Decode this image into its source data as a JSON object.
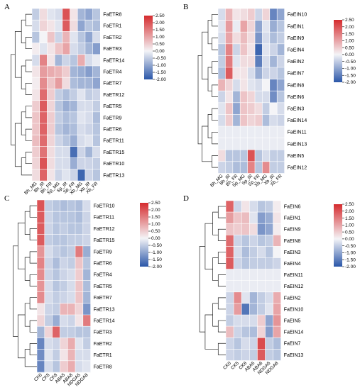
{
  "colorscale": {
    "low": "#2a56a8",
    "mid": "#f4f4f7",
    "high": "#d52b2e",
    "min": -2.0,
    "max": 2.5
  },
  "chart_data": [
    {
      "type": "heatmap",
      "panel": "A",
      "columns": [
        "Bh_MG",
        "Bh_IR",
        "Bh_FR",
        "Sp_MG",
        "Sp_IR",
        "Sp_FR",
        "Xb_MG",
        "Xb_IR",
        "Xb_FR"
      ],
      "rows": [
        "FaETR8",
        "FaETR1",
        "FaETR2",
        "FaETR3",
        "FaETR14",
        "FaETR4",
        "FaETR7",
        "FaETR12",
        "FaETR5",
        "FaETR9",
        "FaETR6",
        "FaETR11",
        "FaETR15",
        "FaETR10",
        "FaETR13"
      ],
      "values": [
        [
          -0.5,
          0.3,
          -0.2,
          -0.3,
          2.0,
          0.2,
          -0.8,
          -1.0,
          -0.6
        ],
        [
          -0.3,
          0.4,
          0.2,
          -0.2,
          1.9,
          0.3,
          -1.0,
          -0.6,
          -0.7
        ],
        [
          -0.6,
          0.0,
          0.6,
          -0.4,
          0.8,
          -0.2,
          -0.6,
          -1.0,
          -0.3
        ],
        [
          0.1,
          -0.2,
          0.2,
          0.6,
          1.0,
          -0.3,
          -0.5,
          -0.8,
          -1.1
        ],
        [
          -0.3,
          1.4,
          0.2,
          -0.8,
          -0.4,
          -0.6,
          0.9,
          -0.3,
          -0.1
        ],
        [
          0.2,
          1.1,
          0.9,
          0.8,
          0.5,
          -0.8,
          -0.9,
          -1.1,
          -0.8
        ],
        [
          0.1,
          1.3,
          0.6,
          1.1,
          0.3,
          -0.7,
          -0.8,
          -0.8,
          -1.0
        ],
        [
          0.2,
          1.7,
          0.5,
          -0.5,
          -0.7,
          -0.5,
          -0.2,
          -0.5,
          -0.4
        ],
        [
          0.5,
          1.9,
          0.4,
          -0.6,
          -0.9,
          -0.8,
          -0.3,
          -0.3,
          -0.5
        ],
        [
          0.6,
          1.8,
          0.5,
          -0.5,
          -0.7,
          -0.6,
          -0.2,
          -0.3,
          -0.7
        ],
        [
          0.6,
          1.8,
          0.5,
          -0.6,
          -0.8,
          -0.7,
          -0.3,
          -0.4,
          -0.6
        ],
        [
          0.7,
          1.7,
          0.4,
          -0.4,
          -0.6,
          -0.9,
          -0.3,
          -0.2,
          -0.6
        ],
        [
          0.5,
          1.6,
          0.3,
          -0.3,
          -0.3,
          -1.7,
          -0.4,
          -0.8,
          -0.3
        ],
        [
          0.4,
          2.0,
          0.3,
          -0.3,
          -0.3,
          -0.9,
          -0.4,
          -0.4,
          -0.5
        ],
        [
          0.3,
          1.8,
          0.2,
          -0.4,
          -0.2,
          -0.4,
          -1.8,
          -0.4,
          -0.6
        ]
      ]
    },
    {
      "type": "heatmap",
      "panel": "B",
      "columns": [
        "Bh_MG",
        "Bh_IR",
        "Bh_FR",
        "Sp_MG",
        "Sp_IR",
        "Sp_FR",
        "Xb_MG",
        "Xb_IR",
        "Xb_FR"
      ],
      "rows": [
        "FaEIN10",
        "FaEIN1",
        "FaEIN9",
        "FaEIN4",
        "FaEIN2",
        "FaEIN7",
        "FaEIN8",
        "FaEIN6",
        "FaEIN3",
        "FaEIN14",
        "FaEIN11",
        "FaEIN13",
        "FaEIN5",
        "FaEIN12"
      ],
      "values": [
        [
          -0.3,
          0.8,
          0.2,
          0.3,
          0.5,
          -0.4,
          0.4,
          -1.4,
          -1.0
        ],
        [
          -0.2,
          1.1,
          -0.1,
          1.0,
          0.4,
          -1.0,
          -0.2,
          -0.9,
          -0.6
        ],
        [
          -0.3,
          1.0,
          0.3,
          0.7,
          0.3,
          -1.2,
          -0.3,
          -0.7,
          -0.5
        ],
        [
          -0.6,
          1.4,
          -0.4,
          0.6,
          0.2,
          -1.8,
          -0.2,
          -0.4,
          -0.8
        ],
        [
          -0.5,
          1.5,
          -0.2,
          0.3,
          0.3,
          -1.5,
          -0.3,
          -0.8,
          -0.4
        ],
        [
          -0.7,
          1.9,
          0.2,
          0.2,
          -0.3,
          -0.9,
          -0.4,
          -0.4,
          -0.6
        ],
        [
          0.8,
          0.4,
          -0.3,
          0.2,
          -0.2,
          -0.3,
          0.0,
          -1.4,
          -1.0
        ],
        [
          -0.4,
          0.2,
          -0.8,
          0.6,
          0.4,
          -0.3,
          -0.3,
          -1.3,
          -0.6
        ],
        [
          -0.2,
          0.6,
          -1.0,
          0.6,
          0.5,
          0.3,
          -0.5,
          0.0,
          -0.3
        ],
        [
          -0.3,
          0.5,
          -0.8,
          0.6,
          0.4,
          0.5,
          -0.7,
          -0.3,
          -0.4
        ],
        [
          -0.1,
          -0.1,
          -0.1,
          -0.1,
          -0.1,
          -0.1,
          -0.1,
          -0.1,
          -0.1
        ],
        [
          -0.1,
          -0.1,
          -0.1,
          -0.1,
          -0.1,
          -0.1,
          -0.1,
          -0.1,
          -0.1
        ],
        [
          0.3,
          -0.6,
          -0.6,
          -0.6,
          2.0,
          -0.6,
          -0.3,
          -0.5,
          -0.5
        ],
        [
          -0.4,
          -0.5,
          -0.7,
          -0.7,
          1.4,
          -0.6,
          1.3,
          -0.5,
          -0.5
        ]
      ]
    },
    {
      "type": "heatmap",
      "panel": "C",
      "columns": [
        "CK0",
        "CK5",
        "CK8",
        "ABA5",
        "ABA8",
        "NDGA5",
        "NDGA8"
      ],
      "rows": [
        "FaETR10",
        "FaETR11",
        "FaETR12",
        "FaETR15",
        "FaETR9",
        "FaETR6",
        "FaETR4",
        "FaETR5",
        "FaETR7",
        "FaETR13",
        "FaETR14",
        "FaETR3",
        "FaETR2",
        "FaETR1",
        "FaETR8"
      ],
      "values": [
        [
          2.0,
          -0.5,
          -0.6,
          -0.7,
          -0.6,
          -0.7,
          -0.3
        ],
        [
          1.9,
          -0.4,
          -0.6,
          -0.6,
          -0.6,
          -0.7,
          -0.4
        ],
        [
          1.9,
          -0.4,
          -0.6,
          -0.5,
          -0.6,
          -0.6,
          -0.4
        ],
        [
          1.9,
          -0.5,
          -0.6,
          -0.6,
          -0.5,
          -0.5,
          -0.4
        ],
        [
          1.2,
          -0.3,
          -0.5,
          -0.6,
          -0.5,
          1.5,
          -0.9
        ],
        [
          1.4,
          -0.4,
          -0.7,
          -0.4,
          -0.5,
          0.6,
          -0.6
        ],
        [
          1.3,
          -0.4,
          -0.6,
          -0.4,
          -0.3,
          0.5,
          -0.8
        ],
        [
          1.2,
          -0.3,
          -0.6,
          -0.5,
          -0.3,
          0.6,
          -0.7
        ],
        [
          1.3,
          -0.3,
          -0.5,
          -0.4,
          -0.3,
          0.6,
          -0.8
        ],
        [
          0.2,
          -0.4,
          -0.5,
          0.8,
          0.8,
          0.4,
          -1.2
        ],
        [
          0.4,
          -0.5,
          -0.9,
          -0.3,
          -0.4,
          0.2,
          1.5
        ],
        [
          -0.8,
          0.4,
          1.8,
          -0.5,
          -0.5,
          -0.6,
          -0.6
        ],
        [
          -1.4,
          -0.3,
          -0.4,
          0.4,
          0.9,
          -0.2,
          -0.5
        ],
        [
          -1.3,
          -0.2,
          -0.5,
          0.2,
          0.8,
          -0.3,
          -0.3
        ],
        [
          -1.4,
          -0.3,
          -0.6,
          0.5,
          0.9,
          -0.3,
          -0.2
        ]
      ]
    },
    {
      "type": "heatmap",
      "panel": "D",
      "columns": [
        "CK0",
        "CK5",
        "CK8",
        "ABA5",
        "ABA8",
        "NDGA5",
        "NDGA8"
      ],
      "rows": [
        "FaEIN6",
        "FaEIN1",
        "FaEIN9",
        "FaEIN8",
        "FaEIN3",
        "FaEIN4",
        "FaEIN11",
        "FaEIN12",
        "FaEIN2",
        "FaEIN10",
        "FaEIN5",
        "FaEIN14",
        "FaEIN7",
        "FaEIN13"
      ],
      "values": [
        [
          1.8,
          -0.4,
          0.2,
          -0.3,
          -0.6,
          -0.5,
          0.1
        ],
        [
          1.1,
          0.6,
          0.7,
          -0.2,
          -1.1,
          -0.9,
          0.2
        ],
        [
          0.6,
          0.5,
          0.6,
          0.3,
          -1.2,
          -1.0,
          0.1
        ],
        [
          1.7,
          -0.4,
          -0.6,
          -0.4,
          -0.6,
          -0.5,
          0.8
        ],
        [
          1.8,
          -0.3,
          -0.7,
          -0.5,
          -0.3,
          -0.6,
          0.0
        ],
        [
          1.9,
          -0.4,
          -0.6,
          -0.5,
          -0.5,
          -0.5,
          -0.4
        ],
        [
          -0.1,
          -0.1,
          -0.1,
          -0.1,
          -0.1,
          -0.1,
          -0.1
        ],
        [
          -0.1,
          -0.1,
          -0.1,
          -0.1,
          -0.1,
          -0.1,
          -0.1
        ],
        [
          -0.4,
          1.3,
          -0.2,
          -0.8,
          -0.5,
          -0.3,
          0.9
        ],
        [
          -0.4,
          1.1,
          -1.6,
          -0.8,
          -0.5,
          -0.2,
          1.0
        ],
        [
          -0.5,
          -0.3,
          -0.3,
          -0.3,
          0.5,
          -1.0,
          1.2
        ],
        [
          0.7,
          -0.4,
          -0.6,
          -0.7,
          0.4,
          -1.1,
          1.0
        ],
        [
          -0.4,
          -0.6,
          -0.3,
          -0.4,
          2.1,
          -0.5,
          -0.7
        ],
        [
          -0.4,
          -0.5,
          -0.4,
          -0.5,
          1.9,
          -0.5,
          -0.6
        ]
      ]
    }
  ],
  "legend_ticks": [
    "2.50",
    "2.00",
    "1.50",
    "1.00",
    "0.50",
    "0.00",
    "-0.50",
    "-1.00",
    "-1.50",
    "-2.00"
  ]
}
